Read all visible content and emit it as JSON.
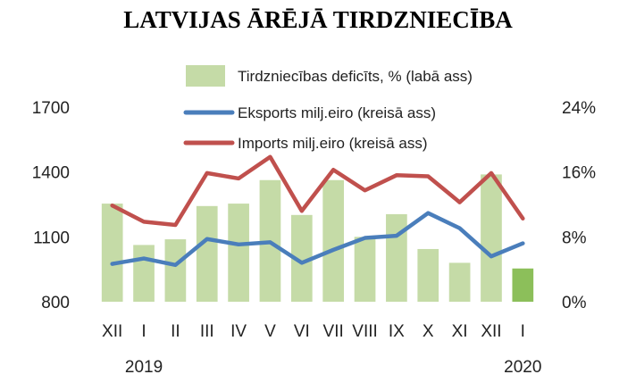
{
  "chart_data": {
    "type": "bar",
    "title": "LATVIJAS ĀRĒJĀ TIRDZNIECĪBA",
    "categories": [
      "XII",
      "I",
      "II",
      "III",
      "IV",
      "V",
      "VI",
      "VII",
      "VIII",
      "IX",
      "X",
      "XI",
      "XII",
      "I"
    ],
    "year_labels": [
      {
        "label": "2019",
        "category_index": 1
      },
      {
        "label": "2020",
        "category_index": 13
      }
    ],
    "left_axis": {
      "ylim": [
        800,
        1700
      ],
      "ticks": [
        "800",
        "1100",
        "1400",
        "1700"
      ]
    },
    "right_axis": {
      "ylim": [
        0,
        24
      ],
      "ticks": [
        "0%",
        "8%",
        "16%",
        "24%"
      ]
    },
    "legend_position": "top",
    "grid": false,
    "series": [
      {
        "name": "Tirdzniecības deficīts, % (labā ass)",
        "type": "bar",
        "axis": "right",
        "color": "#c5dba7",
        "highlight_last_color": "#8cbf5a",
        "values": [
          12.1,
          7.0,
          7.7,
          11.8,
          12.1,
          15.0,
          10.7,
          15.0,
          8.0,
          10.8,
          6.5,
          4.8,
          15.7,
          4.1
        ]
      },
      {
        "name": "Eksports milj.eiro (kreisā ass)",
        "type": "line",
        "axis": "left",
        "color": "#4a7ebb",
        "values": [
          975,
          1000,
          970,
          1090,
          1065,
          1075,
          980,
          1040,
          1095,
          1105,
          1210,
          1140,
          1010,
          1070
        ]
      },
      {
        "name": "Imports milj.eiro (kreisā ass)",
        "type": "line",
        "axis": "left",
        "color": "#c0504d",
        "values": [
          1245,
          1170,
          1155,
          1395,
          1370,
          1470,
          1220,
          1410,
          1315,
          1385,
          1380,
          1260,
          1395,
          1185
        ]
      }
    ]
  }
}
